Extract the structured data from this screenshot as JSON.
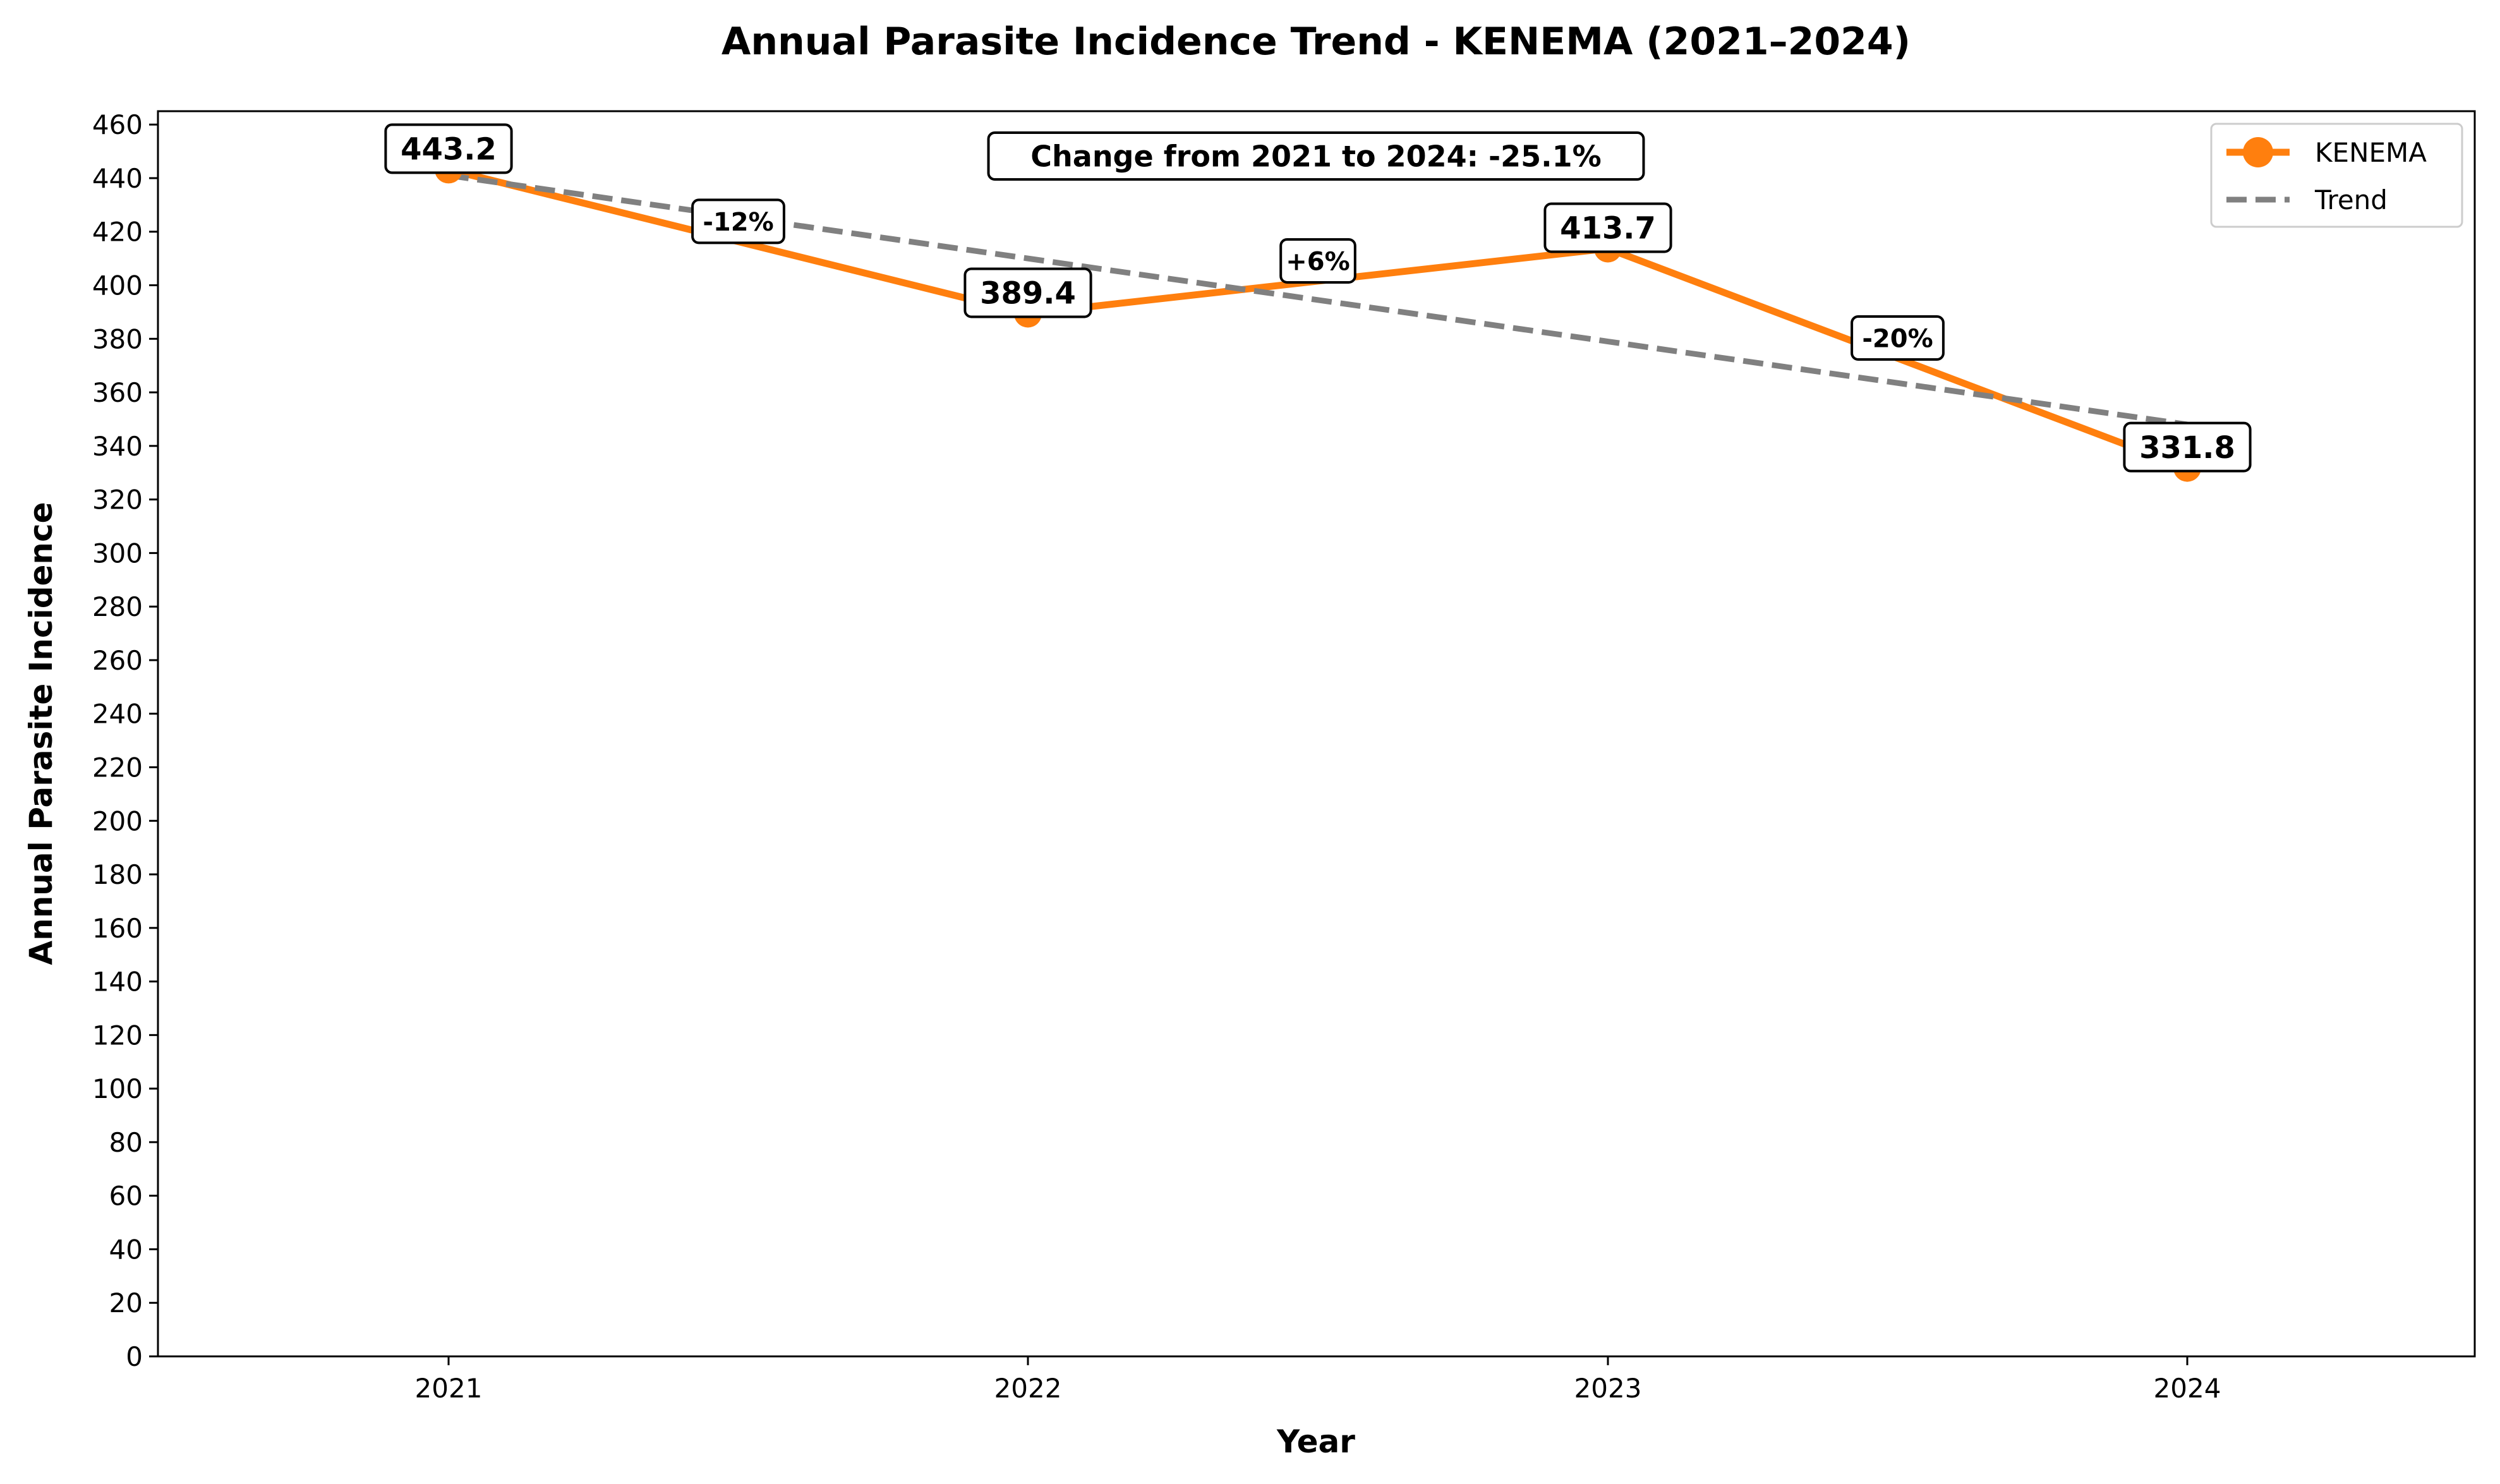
{
  "chart_data": {
    "type": "line",
    "title": "Annual Parasite Incidence Trend - KENEMA (2021–2024)",
    "xlabel": "Year",
    "ylabel": "Annual Parasite Incidence",
    "categories": [
      "2021",
      "2022",
      "2023",
      "2024"
    ],
    "series": [
      {
        "name": "KENEMA",
        "values": [
          443.2,
          389.4,
          413.7,
          331.8
        ],
        "color": "#ff7f0e",
        "style": "solid",
        "marker": "circle"
      },
      {
        "name": "Trend",
        "values": [
          441.0,
          410.0,
          379.0,
          348.0
        ],
        "color": "#808080",
        "style": "dashed"
      }
    ],
    "value_labels": [
      "443.2",
      "389.4",
      "413.7",
      "331.8"
    ],
    "segment_changes": [
      "-12%",
      "+6%",
      "-20%"
    ],
    "change_annotation": "Change from 2021 to 2024: -25.1%",
    "ylim": [
      0,
      465
    ],
    "yticks": [
      0,
      20,
      40,
      60,
      80,
      100,
      120,
      140,
      160,
      180,
      200,
      220,
      240,
      260,
      280,
      300,
      320,
      340,
      360,
      380,
      400,
      420,
      440,
      460
    ],
    "legend": {
      "position": "top-right",
      "entries": [
        "KENEMA",
        "Trend"
      ]
    },
    "grid": false
  }
}
